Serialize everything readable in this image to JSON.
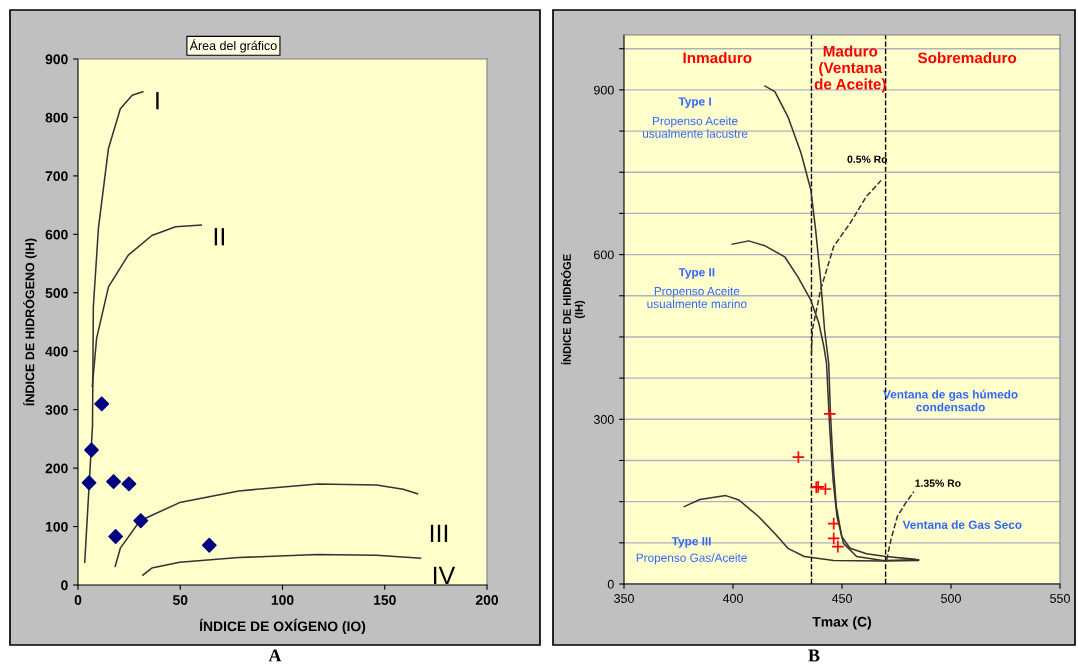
{
  "chart_data": [
    {
      "type": "scatter",
      "title": "A",
      "xlabel": "ÍNDICE DE OXÍGENO (IO)",
      "ylabel": "ÍNDICE DE HIDRÓGENO (IH)",
      "xlim": [
        0,
        200
      ],
      "xticks": [
        0,
        50,
        100,
        150,
        200
      ],
      "ylim": [
        0,
        900
      ],
      "yticks": [
        0,
        100,
        200,
        300,
        400,
        500,
        600,
        700,
        800,
        900
      ],
      "grid": false,
      "legend": false,
      "series": [
        {
          "type": "line",
          "name": "I",
          "color": "#333333",
          "line_style": "solid",
          "x": [
            3.3,
            7.1,
            7.5,
            10,
            14.9,
            20.7,
            26.5,
            31.7
          ],
          "values": [
            39,
            273,
            476,
            611,
            747,
            815,
            838,
            844
          ]
        },
        {
          "type": "line",
          "name": "II",
          "color": "#333333",
          "line_style": "solid",
          "x": [
            7,
            9.1,
            14.9,
            24.5,
            36.1,
            47.7,
            60.3
          ],
          "values": [
            340,
            422,
            510,
            564,
            598,
            613,
            616
          ]
        },
        {
          "type": "line",
          "name": "III",
          "color": "#333333",
          "line_style": "solid",
          "x": [
            18.2,
            20.7,
            30.3,
            49.7,
            78.6,
            117.3,
            146,
            159,
            166
          ],
          "values": [
            32,
            63,
            110,
            141,
            161,
            173,
            171,
            164,
            156
          ]
        },
        {
          "type": "line",
          "name": "IV",
          "color": "#333333",
          "line_style": "solid",
          "x": [
            31.7,
            36.1,
            49.7,
            78.6,
            117,
            146,
            167.5
          ],
          "values": [
            17,
            29,
            39,
            47,
            52,
            51,
            46
          ]
        },
        {
          "color": "#000080",
          "marker": "diamond",
          "x": [
            11.6,
            6.6,
            5.4,
            17.4,
            24.9,
            30.7,
            18.4,
            64.2
          ],
          "values": [
            310,
            231,
            175,
            177,
            173,
            110,
            83,
            68
          ]
        }
      ],
      "annotations": [
        "Área del gráfico"
      ]
    },
    {
      "type": "scatter",
      "title": "B",
      "xlabel": "Tmax (C)",
      "ylabel": "ÍNDICE DE HIDRÓGE\n(IH)",
      "xlim": [
        350,
        550
      ],
      "xticks": [
        350,
        400,
        450,
        500,
        550
      ],
      "ylim": [
        0,
        1000
      ],
      "yticks": [
        0,
        {
          "value": 75,
          "label": null
        },
        {
          "value": 150,
          "label": null
        },
        {
          "value": 225,
          "label": null
        },
        300,
        {
          "value": 375,
          "label": null
        },
        {
          "value": 450,
          "label": null
        },
        {
          "value": 525,
          "label": null
        },
        600,
        {
          "value": 675,
          "label": null
        },
        {
          "value": 750,
          "label": null
        },
        {
          "value": 825,
          "label": null
        },
        900,
        {
          "value": 975,
          "label": null
        }
      ],
      "grid": "y",
      "legend": false,
      "ref_lines": [
        {
          "axis": "x",
          "value": 436,
          "color": "#000000",
          "line_style": "dashed"
        },
        {
          "axis": "x",
          "value": 470,
          "color": "#000000",
          "line_style": "dashed"
        }
      ],
      "series": [
        {
          "type": "line",
          "color": "#333333",
          "line_style": "solid",
          "x": [
            414.7,
            419.2,
            425.2,
            431.2,
            435.7,
            437.9,
            440.2,
            442,
            443.9,
            444.7,
            445.9,
            447.4,
            449.9,
            453.7,
            461.2,
            470.1,
            483.6
          ],
          "values": [
            907,
            897,
            851,
            785,
            718,
            645,
            554,
            463,
            402,
            311,
            220,
            141,
            86,
            65,
            55,
            50,
            45
          ]
        },
        {
          "type": "line",
          "color": "#333333",
          "line_style": "solid",
          "x": [
            399.7,
            407.2,
            414.7,
            423.7,
            429.7,
            435.7,
            439.4,
            441.7,
            442.9,
            444.4,
            445.9,
            447.7,
            450.7,
            456.7,
            468.7,
            485.1
          ],
          "values": [
            619,
            625,
            616,
            596,
            560,
            517,
            475,
            432,
            402,
            281,
            189,
            123,
            74,
            50,
            43,
            44
          ]
        },
        {
          "type": "line",
          "color": "#333333",
          "line_style": "solid",
          "x": [
            377.6,
            384.8,
            396.7,
            402.7,
            411.7,
            419.2,
            425.2,
            432.7,
            446.2,
            468.7,
            485.1
          ],
          "values": [
            141,
            154,
            161,
            153,
            123,
            92,
            65,
            50,
            43,
            42,
            43
          ]
        },
        {
          "type": "line",
          "color": "#333333",
          "line_style": "dashed",
          "x": [
            436,
            436.4,
            440.2,
            446.2,
            453.7,
            461.2,
            467.9
          ],
          "values": [
            420,
            463,
            536,
            615,
            657,
            706,
            735
          ]
        },
        {
          "type": "line",
          "color": "#333333",
          "line_style": "dashed",
          "x": [
            470.5,
            472.4,
            475.4,
            479.1,
            482.9
          ],
          "values": [
            44,
            80,
            123,
            147,
            168
          ]
        },
        {
          "color": "#ff0000",
          "marker": "cross",
          "x": [
            444.4,
            430,
            438.2,
            439.1,
            442.4,
            446.2,
            446.2,
            448.1
          ],
          "values": [
            310,
            231,
            176,
            177,
            173,
            110,
            83,
            68
          ]
        }
      ],
      "annotations": [
        "Inmaduro",
        "Maduro\n(Ventana\nde Aceite)",
        "Sobremaduro",
        "Type I",
        "Propenso Aceite\nusualmente lacustre",
        "0.5% Ro",
        "Type II",
        "Propenso Aceite\nusualmente marino",
        "Ventana de gas húmedo\ncondensado",
        "1.35% Ro",
        "Ventana de Gas Seco",
        "Type III",
        "Propenso Gas/Aceite"
      ]
    }
  ]
}
